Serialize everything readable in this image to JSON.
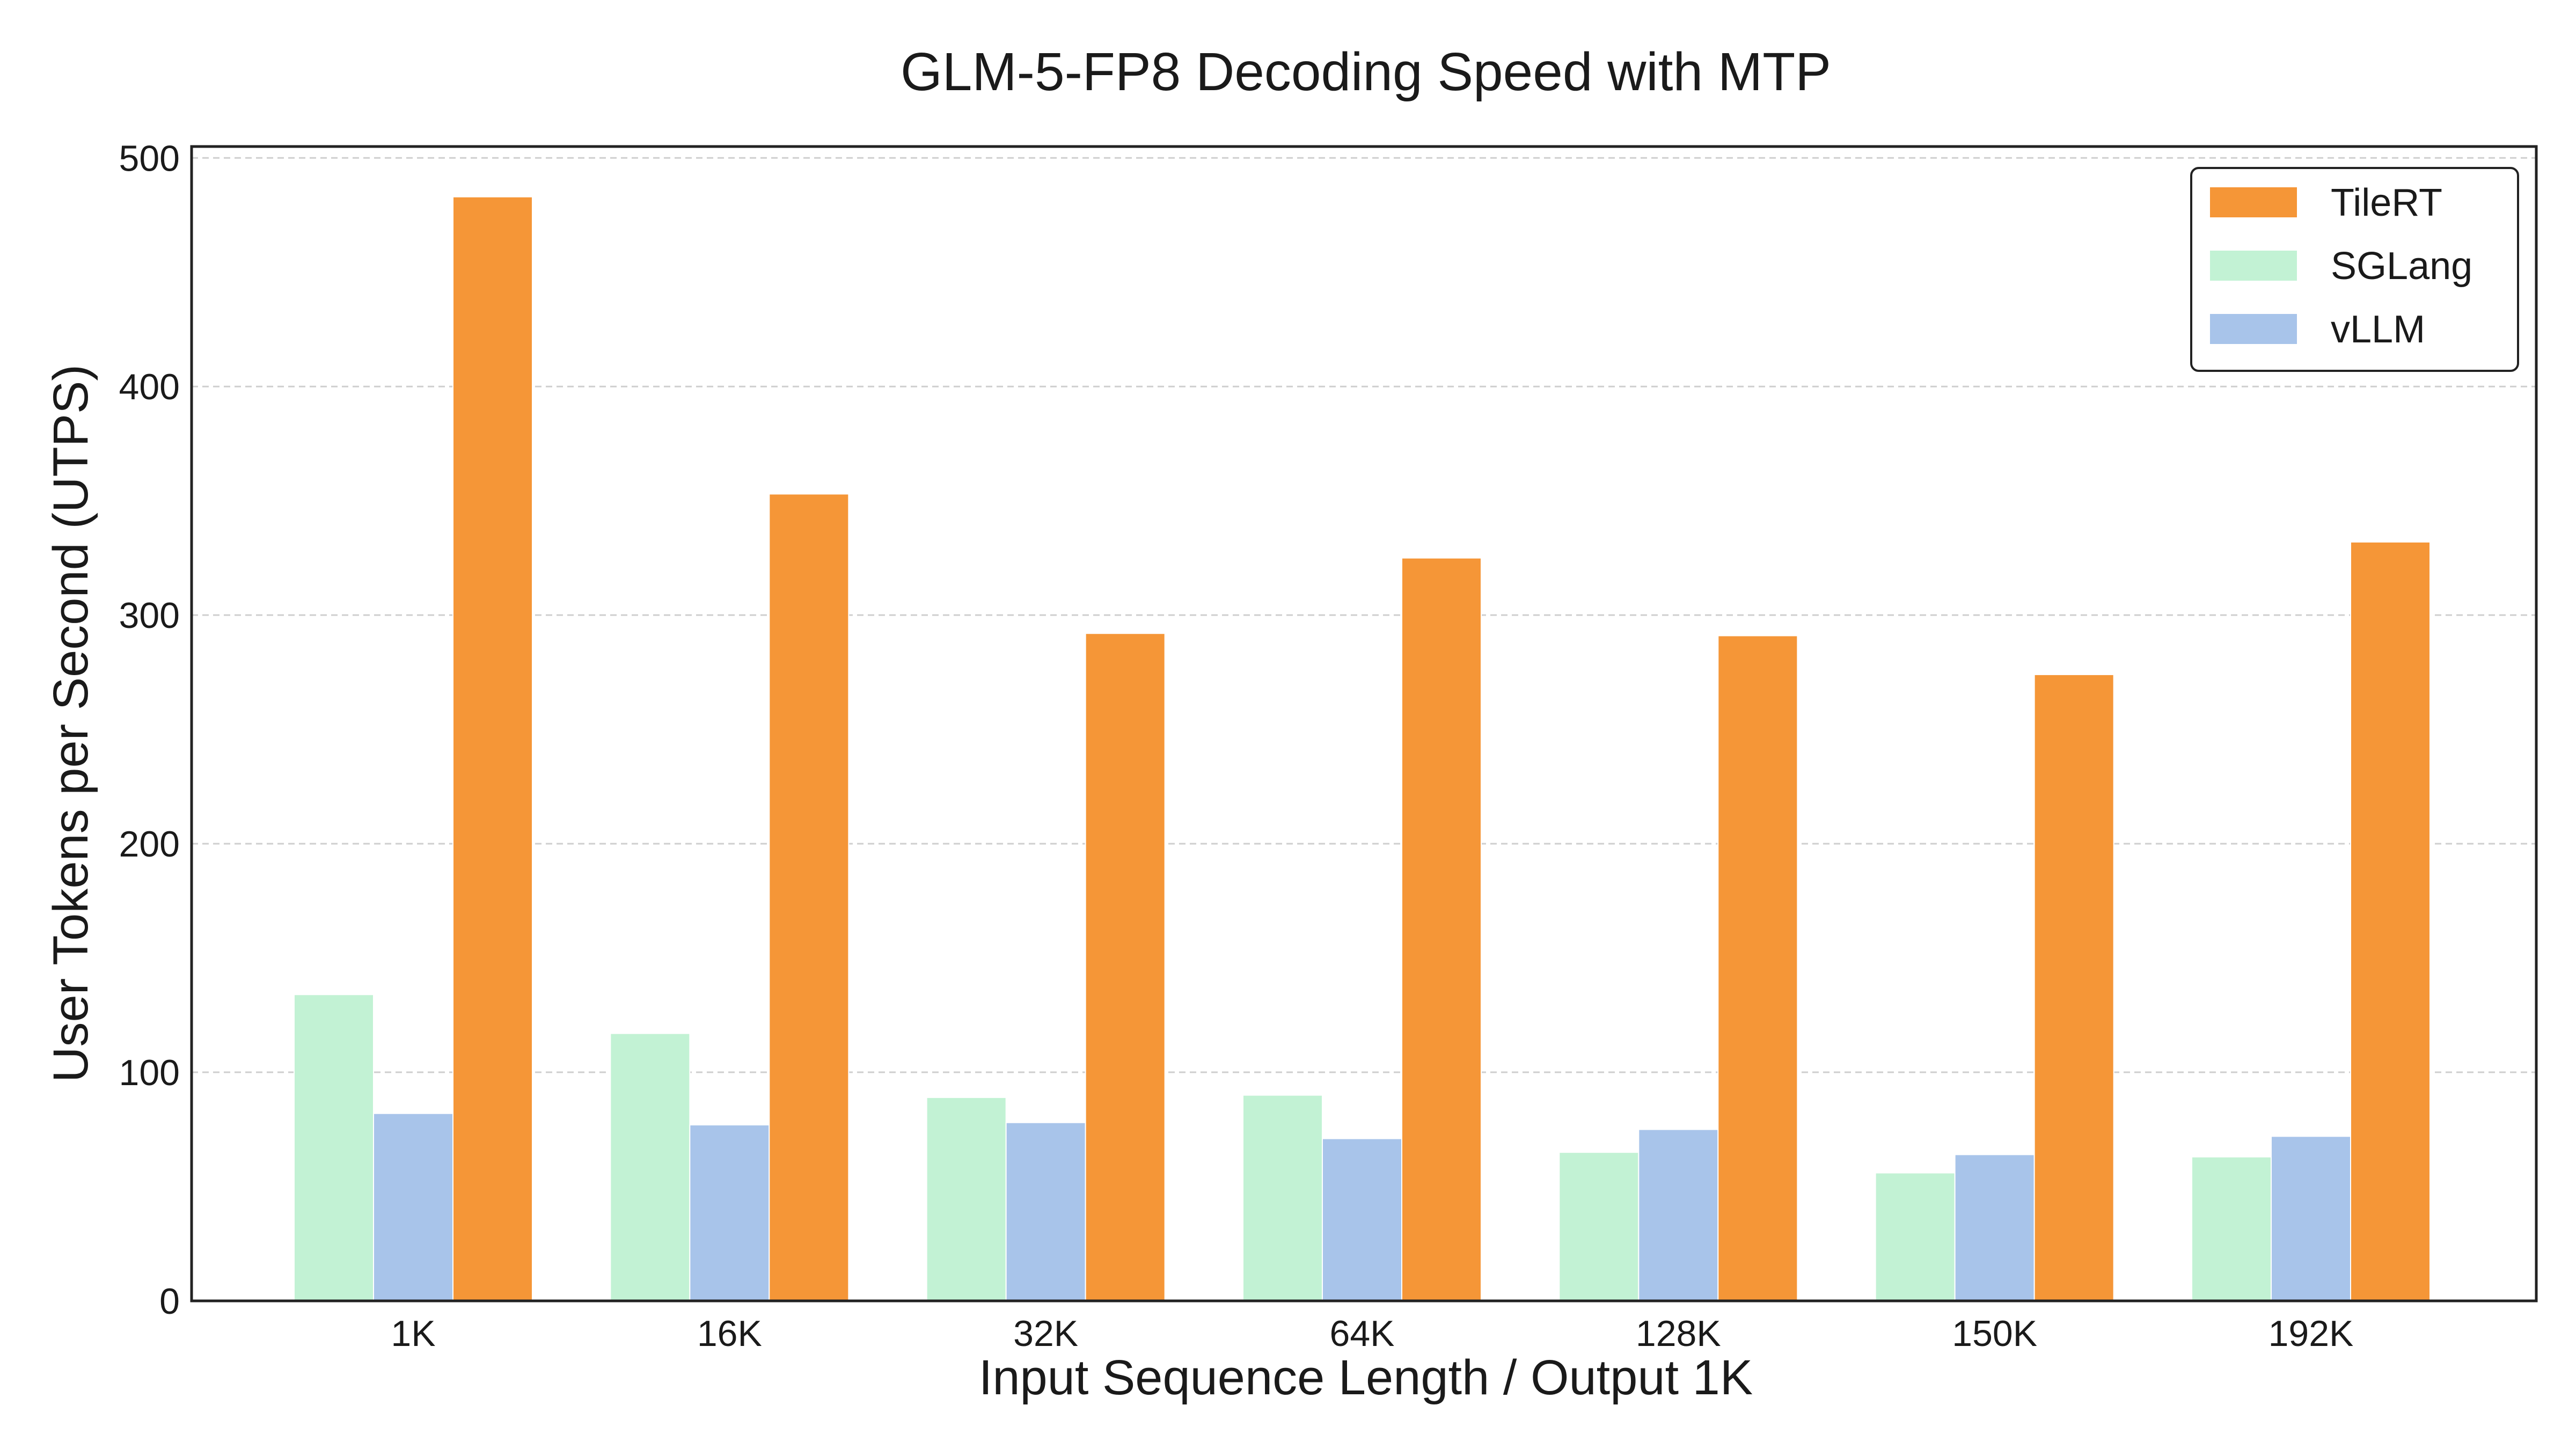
{
  "chart_data": {
    "type": "bar",
    "title": "GLM-5-FP8 Decoding Speed with MTP",
    "xlabel": "Input Sequence Length / Output 1K",
    "ylabel": "User Tokens per Second (UTPS)",
    "ylim": [
      0,
      505
    ],
    "yticks": [
      "0",
      "100",
      "200",
      "300",
      "400",
      "500"
    ],
    "grid": true,
    "legend_position": "top-right",
    "categories": [
      "1K",
      "16K",
      "32K",
      "64K",
      "128K",
      "150K",
      "192K"
    ],
    "series": [
      {
        "name": "SGLang",
        "color": "#c2f2d4",
        "values": [
          134,
          117,
          89,
          90,
          65,
          56,
          63
        ]
      },
      {
        "name": "vLLM",
        "color": "#a8c4ea",
        "values": [
          82,
          77,
          78,
          71,
          75,
          64,
          72
        ]
      },
      {
        "name": "TileRT",
        "color": "#f59637",
        "values": [
          483,
          353,
          292,
          325,
          291,
          274,
          332
        ]
      }
    ],
    "legend_order": [
      "TileRT",
      "SGLang",
      "vLLM"
    ]
  }
}
